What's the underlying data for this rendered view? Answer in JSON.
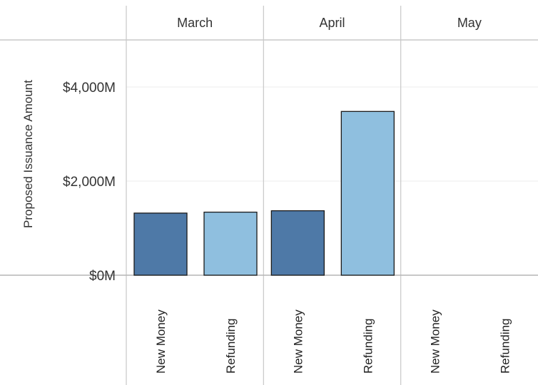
{
  "chart_data": {
    "type": "bar",
    "ylabel": "Proposed Issuance Amount",
    "unit": "$M",
    "ylim": [
      0,
      5000
    ],
    "yticks": [
      {
        "value": 0,
        "label": "$0M"
      },
      {
        "value": 2000,
        "label": "$2,000M"
      },
      {
        "value": 4000,
        "label": "$4,000M"
      }
    ],
    "grid": true,
    "panels": [
      {
        "name": "March",
        "bars": [
          {
            "category": "New Money",
            "value": 1320,
            "color": "#4e79a7"
          },
          {
            "category": "Refunding",
            "value": 1340,
            "color": "#8fbfdf"
          }
        ]
      },
      {
        "name": "April",
        "bars": [
          {
            "category": "New Money",
            "value": 1370,
            "color": "#4e79a7"
          },
          {
            "category": "Refunding",
            "value": 3480,
            "color": "#8fbfdf"
          }
        ]
      },
      {
        "name": "May",
        "bars": [
          {
            "category": "New Money",
            "value": 0,
            "color": "#4e79a7"
          },
          {
            "category": "Refunding",
            "value": 0,
            "color": "#8fbfdf"
          }
        ]
      }
    ]
  }
}
